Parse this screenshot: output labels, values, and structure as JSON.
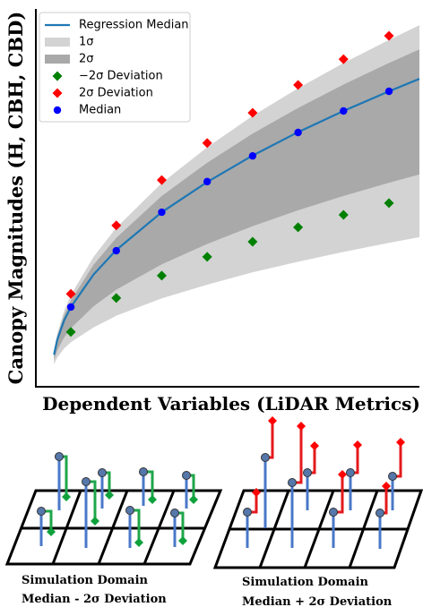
{
  "chart_data": {
    "type": "line",
    "x_label": "Dependent Variables (LiDAR Metrics)",
    "y_label": "Canopy Magnitudes (H, CBH, CBD)",
    "xlim": [
      0.23,
      8.67
    ],
    "ylim": [
      0,
      10
    ],
    "x": [
      0.63,
      0.7,
      0.85,
      1,
      1.5,
      2,
      3,
      4,
      5,
      6,
      7,
      8,
      8.67
    ],
    "series": [
      {
        "name": "Regression Median",
        "color": "#1f77b4",
        "values": [
          0.85,
          1.24,
          1.75,
          2.11,
          2.97,
          3.62,
          4.62,
          5.42,
          6.12,
          6.74,
          7.3,
          7.82,
          8.15
        ]
      }
    ],
    "bands": [
      {
        "name": "1σ",
        "color": "#d3d3d3",
        "lower": [
          0.59,
          0.77,
          1.01,
          1.18,
          1.57,
          1.88,
          2.34,
          2.7,
          3.03,
          3.31,
          3.57,
          3.81,
          3.96
        ],
        "upper": [
          0.94,
          1.4,
          2.0,
          2.43,
          3.44,
          4.21,
          5.39,
          6.34,
          7.17,
          7.9,
          8.57,
          9.18,
          9.57
        ]
      },
      {
        "name": "2σ",
        "color": "#a9a9a9",
        "lower": [
          0.7,
          0.96,
          1.3,
          1.55,
          2.13,
          2.57,
          3.24,
          3.78,
          4.25,
          4.67,
          5.05,
          5.4,
          5.62
        ],
        "upper": [
          0.9,
          1.33,
          1.89,
          2.28,
          3.23,
          3.94,
          5.05,
          5.93,
          6.7,
          7.38,
          8.0,
          8.57,
          8.93
        ]
      }
    ],
    "point_x": [
      1,
      2,
      3,
      4,
      5,
      6,
      7,
      8
    ],
    "points": [
      {
        "name": "−2σ Deviation",
        "color": "#008000",
        "marker": "diamond",
        "values": [
          1.45,
          2.35,
          2.94,
          3.44,
          3.84,
          4.22,
          4.55,
          4.86
        ]
      },
      {
        "name": "2σ Deviation",
        "color": "#ff0000",
        "marker": "diamond",
        "values": [
          2.46,
          4.27,
          5.47,
          6.45,
          7.25,
          7.99,
          8.67,
          9.29
        ]
      },
      {
        "name": "Median",
        "color": "#0000ff",
        "marker": "circle",
        "values": [
          2.11,
          3.6,
          4.62,
          5.43,
          6.11,
          6.73,
          7.3,
          7.82
        ]
      }
    ],
    "legend": "upper left"
  },
  "diagrams": [
    {
      "title": "Simulation Domain",
      "subtitle": "Median - 2σ Deviation"
    },
    {
      "title": "Simulation Domain",
      "subtitle": "Median + 2σ Deviation"
    }
  ]
}
